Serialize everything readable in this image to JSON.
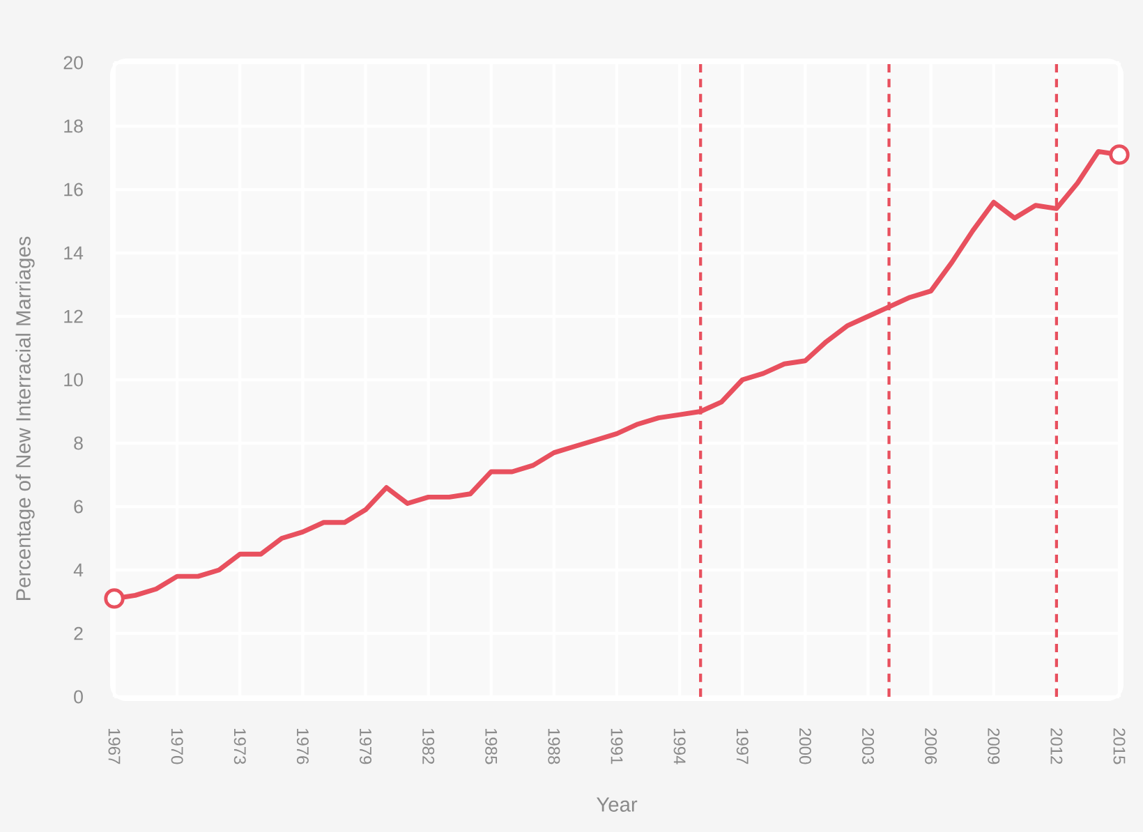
{
  "chart_data": {
    "type": "line",
    "xlabel": "Year",
    "ylabel": "Percentage of New Interracial Marriages",
    "x": [
      1967,
      1968,
      1969,
      1970,
      1971,
      1972,
      1973,
      1974,
      1975,
      1976,
      1977,
      1978,
      1979,
      1980,
      1981,
      1982,
      1983,
      1984,
      1985,
      1986,
      1987,
      1988,
      1989,
      1990,
      1991,
      1992,
      1993,
      1994,
      1995,
      1996,
      1997,
      1998,
      1999,
      2000,
      2001,
      2002,
      2003,
      2004,
      2005,
      2006,
      2007,
      2008,
      2009,
      2010,
      2011,
      2012,
      2013,
      2014,
      2015
    ],
    "series": [
      {
        "color": "#e8505e",
        "values": [
          3.1,
          3.2,
          3.4,
          3.8,
          3.8,
          4.0,
          4.5,
          4.5,
          5.0,
          5.2,
          5.5,
          5.5,
          5.9,
          6.6,
          6.1,
          6.3,
          6.3,
          6.4,
          7.1,
          7.1,
          7.3,
          7.7,
          7.9,
          8.1,
          8.3,
          8.6,
          8.8,
          8.9,
          9.0,
          9.3,
          10.0,
          10.2,
          10.5,
          10.6,
          11.2,
          11.7,
          12.0,
          12.3,
          12.6,
          12.8,
          13.7,
          14.7,
          15.6,
          15.1,
          15.5,
          15.4,
          16.2,
          17.2,
          17.1
        ]
      },
      {
        "type": "scatter",
        "marker": "circle",
        "color": "#e8505e",
        "x": [
          1967,
          2015
        ],
        "values": [
          3.1,
          17.1
        ]
      }
    ],
    "xlim": [
      1967,
      2015
    ],
    "ylim": [
      0,
      20
    ],
    "xticks": [
      1967,
      1970,
      1973,
      1976,
      1979,
      1982,
      1985,
      1988,
      1991,
      1994,
      1997,
      2000,
      2003,
      2006,
      2009,
      2012,
      2015
    ],
    "yticks": [
      0,
      2,
      4,
      6,
      8,
      10,
      12,
      14,
      16,
      18,
      20
    ],
    "grid": true,
    "ref_lines": [
      {
        "axis": "x",
        "value": 1995,
        "color": "#e8505e",
        "line_style": "dashed"
      },
      {
        "axis": "x",
        "value": 2004,
        "color": "#e8505e",
        "line_style": "dashed"
      },
      {
        "axis": "x",
        "value": 2012,
        "color": "#e8505e",
        "line_style": "dashed"
      }
    ]
  }
}
